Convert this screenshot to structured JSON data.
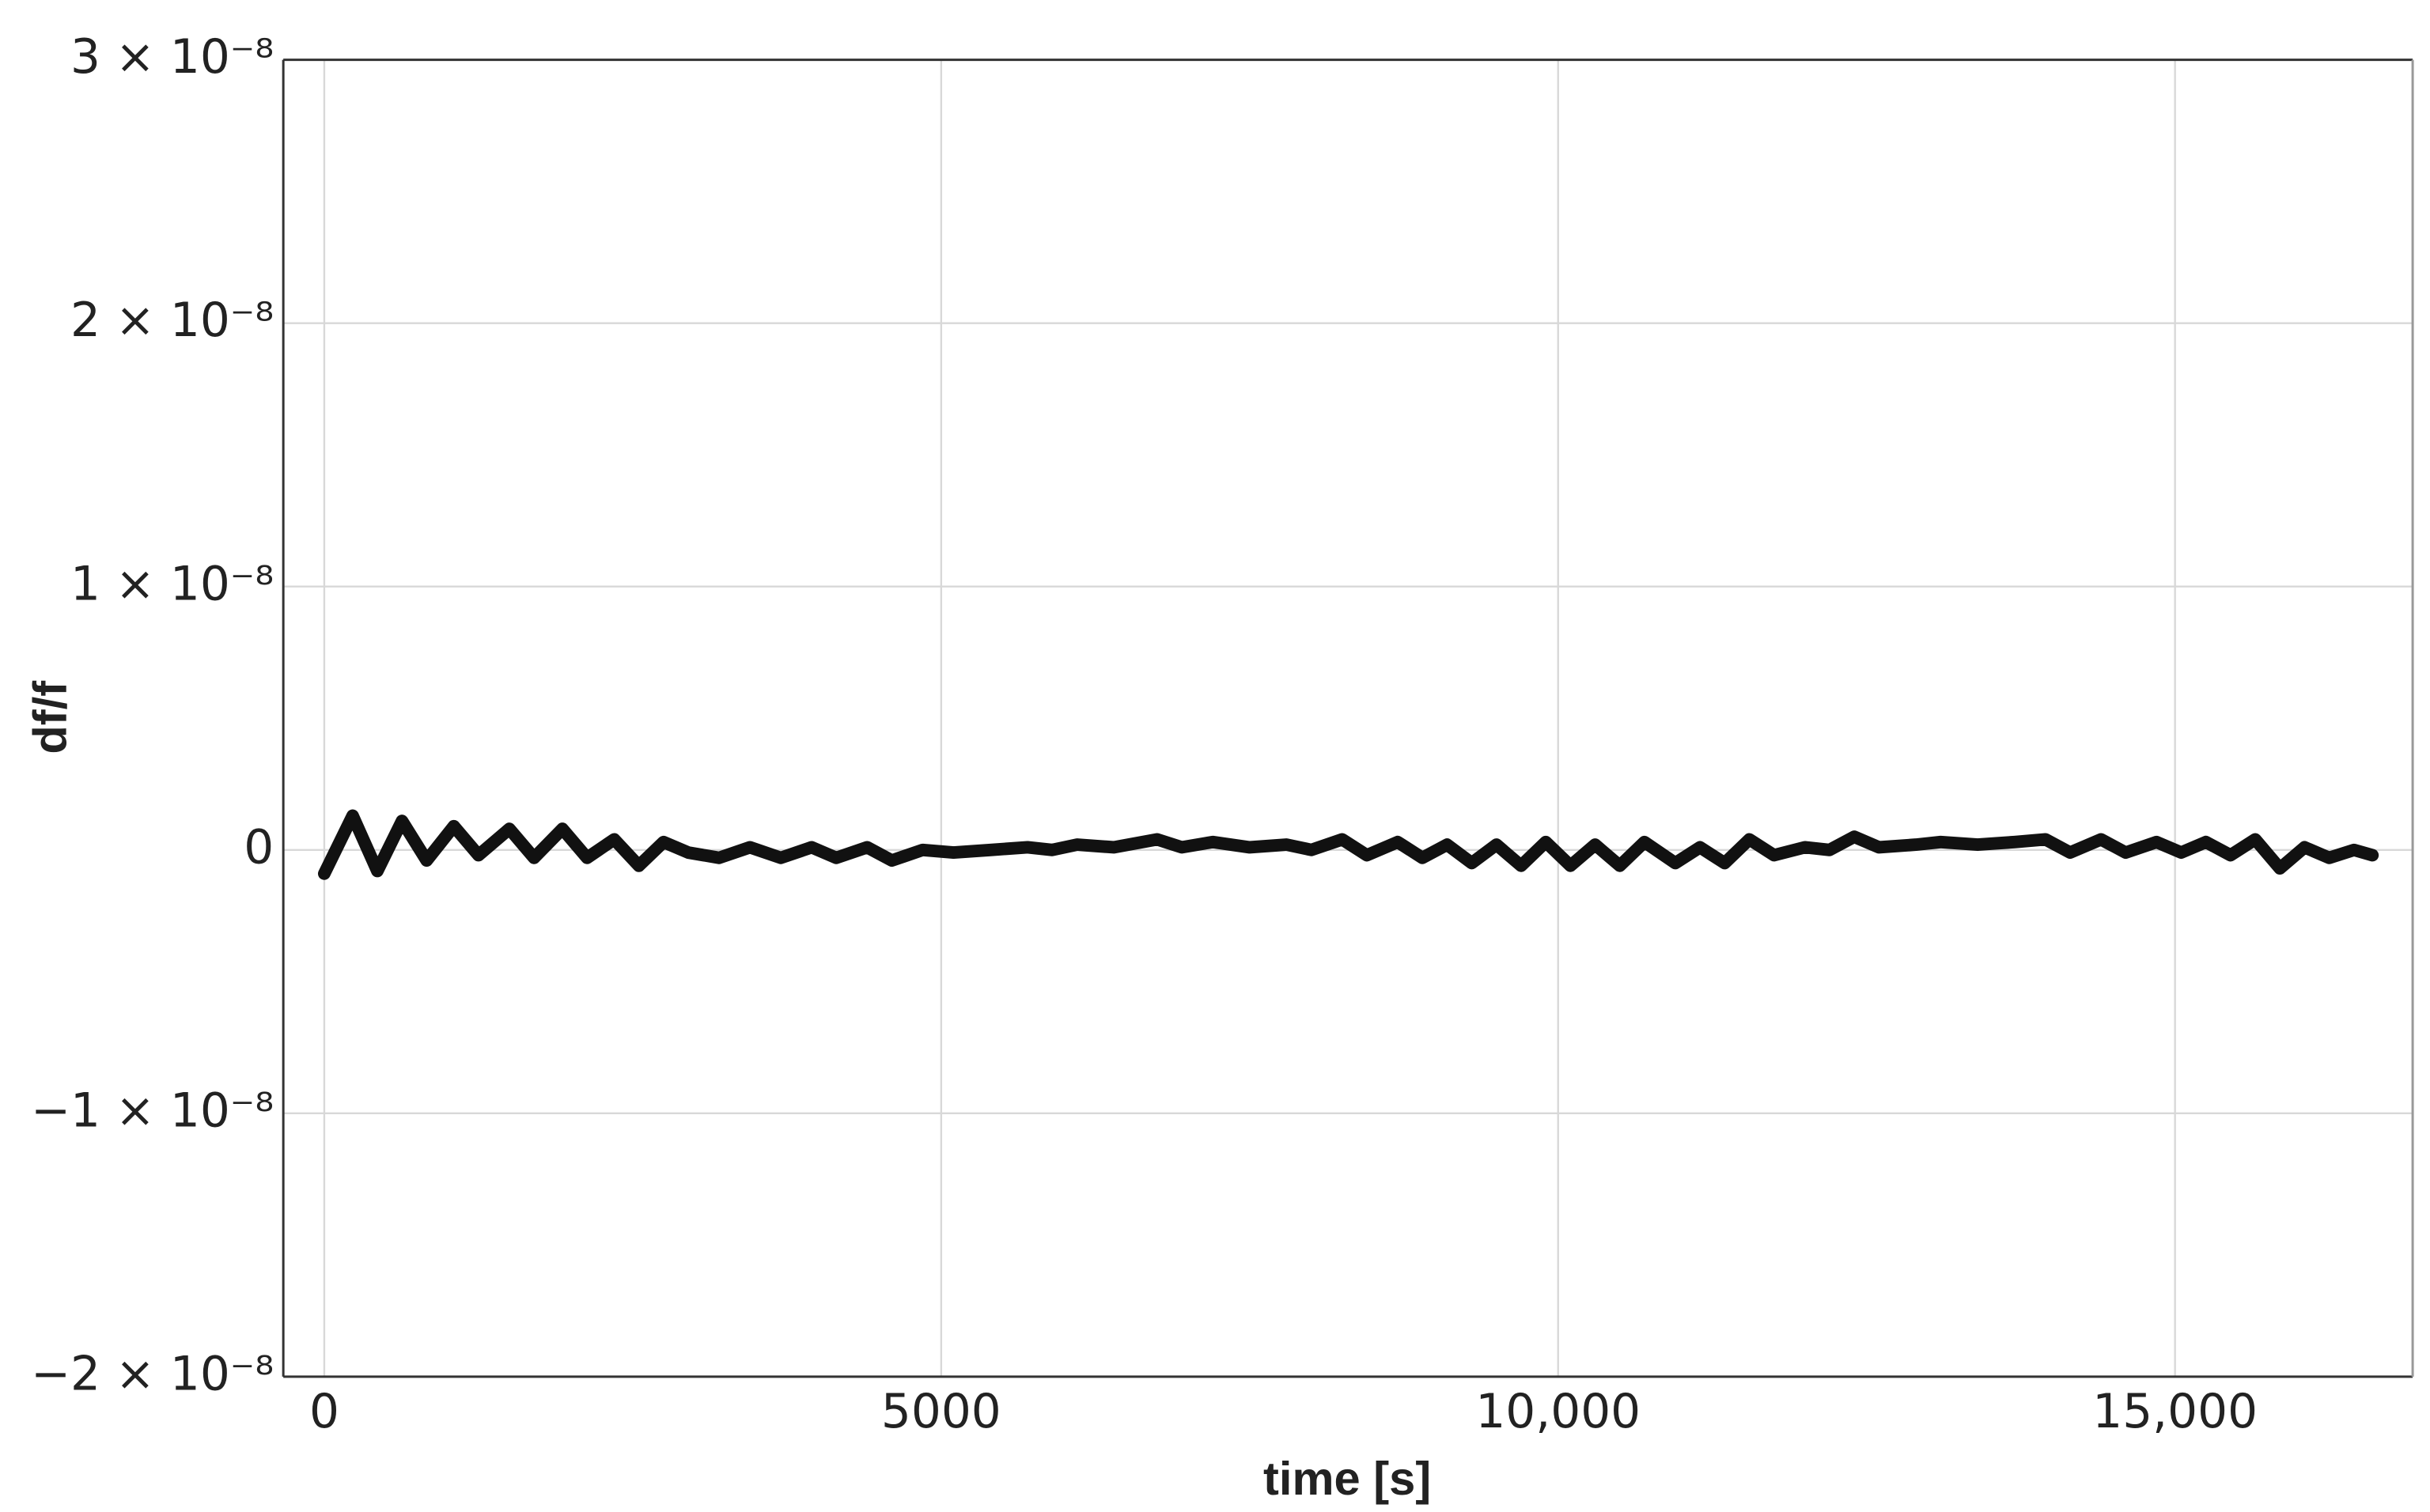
{
  "chart_data": {
    "type": "line",
    "xlabel": "time [s]",
    "ylabel": "df/f",
    "x": [
      0,
      230,
      430,
      630,
      830,
      1050,
      1250,
      1500,
      1700,
      1930,
      2130,
      2350,
      2550,
      2750,
      2950,
      3200,
      3450,
      3700,
      3950,
      4150,
      4400,
      4600,
      4850,
      5100,
      5400,
      5700,
      5900,
      6100,
      6400,
      6750,
      6950,
      7200,
      7500,
      7800,
      8000,
      8250,
      8450,
      8700,
      8900,
      9100,
      9300,
      9500,
      9700,
      9900,
      10100,
      10300,
      10500,
      10700,
      10950,
      11150,
      11350,
      11550,
      11750,
      12000,
      12200,
      12400,
      12600,
      12900,
      13100,
      13400,
      13700,
      13950,
      14150,
      14400,
      14600,
      14850,
      15050,
      15250,
      15450,
      15650,
      15850,
      16050,
      16250,
      16450,
      16600
    ],
    "series": [
      {
        "color": "#111111",
        "values": [
          -9e-10,
          1.3e-09,
          -8e-10,
          1.1e-09,
          -4e-10,
          9e-10,
          -2e-10,
          8e-10,
          -3e-10,
          8e-10,
          -3e-10,
          4e-10,
          -6e-10,
          3e-10,
          -1e-10,
          -3e-10,
          1e-10,
          -3e-10,
          1e-10,
          -3e-10,
          1e-10,
          -4e-10,
          0,
          -1e-10,
          0,
          1e-10,
          0,
          2e-10,
          1e-10,
          4e-10,
          1e-10,
          3e-10,
          1e-10,
          2e-10,
          0,
          4e-10,
          -2e-10,
          3e-10,
          -3e-10,
          2e-10,
          -5e-10,
          2e-10,
          -6e-10,
          3e-10,
          -6e-10,
          2e-10,
          -6e-10,
          3e-10,
          -5e-10,
          1e-10,
          -5e-10,
          4e-10,
          -2e-10,
          1e-10,
          0,
          5e-10,
          1e-10,
          2e-10,
          3e-10,
          2e-10,
          3e-10,
          4e-10,
          -1e-10,
          4e-10,
          -1e-10,
          3e-10,
          -1e-10,
          3e-10,
          -2e-10,
          4e-10,
          -7e-10,
          1e-10,
          -3e-10,
          0,
          -2e-10
        ]
      }
    ],
    "xlim": [
      -332,
      16926
    ],
    "ylim": [
      -2e-08,
      3e-08
    ],
    "xticks": [
      0,
      5000,
      {
        "value": 10000,
        "label": "10,000"
      },
      {
        "value": 15000,
        "label": "15,000"
      }
    ],
    "yticks": [
      {
        "value": -2e-08,
        "label": "−2 × 10⁻⁸"
      },
      {
        "value": -1e-08,
        "label": "−1 × 10⁻⁸"
      },
      0,
      {
        "value": 1e-08,
        "label": "1 × 10⁻⁸"
      },
      {
        "value": 2e-08,
        "label": "2 × 10⁻⁸"
      },
      {
        "value": 3e-08,
        "label": "3 × 10⁻⁸"
      }
    ],
    "grid": true
  }
}
